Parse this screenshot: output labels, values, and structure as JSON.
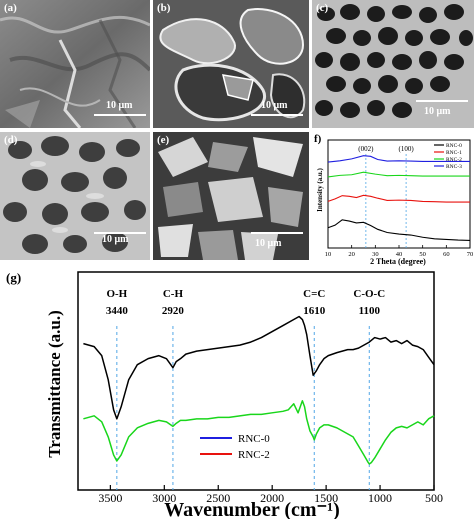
{
  "sem_panels": [
    {
      "label": "(a)",
      "scale": "10 μm"
    },
    {
      "label": "(b)",
      "scale": "10 μm"
    },
    {
      "label": "(c)",
      "scale": "10 μm"
    },
    {
      "label": "(d)",
      "scale": "10 μm"
    },
    {
      "label": "(e)",
      "scale": "10 μm"
    }
  ],
  "colors": {
    "RNC-0": "#000000",
    "RNC-1": "#e8120e",
    "RNC-2": "#19d61b",
    "RNC-3": "#1f1fe0",
    "dash": "#52a7e6"
  },
  "chart_data": [
    {
      "panel": "f",
      "type": "line",
      "label": "f)",
      "xlabel": "2 Theta (degree)",
      "ylabel": "Intensity (a.u.)",
      "xlim": [
        10,
        70
      ],
      "xticks": [
        "10",
        "20",
        "30",
        "40",
        "50",
        "60",
        "70"
      ],
      "peak_labels": [
        "(002)",
        "(100)"
      ],
      "peak_positions": [
        26,
        43
      ],
      "series": [
        {
          "name": "RNC-0",
          "x": [
            10,
            13,
            16,
            19,
            22,
            25,
            28,
            31,
            35,
            40,
            45,
            50,
            55,
            60,
            65,
            70
          ],
          "y": [
            0.45,
            0.53,
            0.7,
            0.66,
            0.6,
            0.62,
            0.52,
            0.4,
            0.3,
            0.25,
            0.22,
            0.15,
            0.1,
            0.08,
            0.06,
            0.05
          ]
        },
        {
          "name": "RNC-1",
          "x": [
            10,
            13,
            16,
            19,
            22,
            25,
            28,
            31,
            35,
            40,
            45,
            50,
            55,
            60,
            65,
            70
          ],
          "y": [
            1.28,
            1.36,
            1.46,
            1.44,
            1.4,
            1.47,
            1.44,
            1.38,
            1.31,
            1.32,
            1.31,
            1.28,
            1.27,
            1.26,
            1.26,
            1.26
          ]
        },
        {
          "name": "RNC-2",
          "x": [
            10,
            15,
            20,
            25,
            30,
            35,
            40,
            45,
            50,
            55,
            60,
            65,
            70
          ],
          "y": [
            2.05,
            2.1,
            2.12,
            2.2,
            2.14,
            2.09,
            2.1,
            2.09,
            2.08,
            2.08,
            2.08,
            2.08,
            2.08
          ]
        },
        {
          "name": "RNC-3",
          "x": [
            10,
            15,
            20,
            25,
            28,
            31,
            35,
            40,
            45,
            50,
            55,
            60,
            65,
            70
          ],
          "y": [
            2.52,
            2.56,
            2.62,
            2.72,
            2.7,
            2.6,
            2.55,
            2.56,
            2.55,
            2.54,
            2.54,
            2.54,
            2.54,
            2.54
          ]
        }
      ]
    },
    {
      "panel": "g",
      "type": "line",
      "label": "(g)",
      "xlabel": "Wavenumber (cm⁻¹)",
      "ylabel": "Transmittance (a.u.)",
      "xlim": [
        3800,
        500
      ],
      "xticks": [
        "3500",
        "3000",
        "2500",
        "2000",
        "1500",
        "1000",
        "500"
      ],
      "annotations": [
        {
          "name": "O-H",
          "value": "3440",
          "x": 3440
        },
        {
          "name": "C-H",
          "value": "2920",
          "x": 2920
        },
        {
          "name": "C=C",
          "value": "1610",
          "x": 1610
        },
        {
          "name": "C-O-C",
          "value": "1100",
          "x": 1100
        }
      ],
      "series": [
        {
          "name": "RNC-0",
          "x": [
            3750,
            3650,
            3580,
            3520,
            3470,
            3440,
            3400,
            3330,
            3250,
            3150,
            3050,
            2980,
            2940,
            2920,
            2890,
            2850,
            2800,
            2700,
            2600,
            2500,
            2400,
            2300,
            2200,
            2100,
            2000,
            1900,
            1800,
            1750,
            1720,
            1700,
            1680,
            1650,
            1620,
            1610,
            1590,
            1560,
            1520,
            1480,
            1440,
            1400,
            1350,
            1300,
            1250,
            1200,
            1150,
            1100,
            1050,
            1000,
            950,
            900,
            850,
            800,
            750,
            700,
            650,
            600,
            550,
            500
          ],
          "y": [
            0.84,
            0.82,
            0.76,
            0.6,
            0.4,
            0.34,
            0.42,
            0.6,
            0.7,
            0.74,
            0.76,
            0.74,
            0.7,
            0.68,
            0.72,
            0.74,
            0.77,
            0.79,
            0.8,
            0.81,
            0.82,
            0.83,
            0.85,
            0.88,
            0.92,
            0.96,
            1.0,
            1.02,
            1.0,
            0.96,
            0.9,
            0.76,
            0.63,
            0.64,
            0.66,
            0.7,
            0.74,
            0.76,
            0.77,
            0.78,
            0.79,
            0.8,
            0.8,
            0.81,
            0.83,
            0.85,
            0.88,
            0.87,
            0.88,
            0.85,
            0.86,
            0.84,
            0.86,
            0.83,
            0.82,
            0.8,
            0.75,
            0.7
          ]
        },
        {
          "name": "RNC-2",
          "x": [
            3750,
            3650,
            3580,
            3520,
            3470,
            3440,
            3400,
            3330,
            3250,
            3150,
            3050,
            2980,
            2940,
            2920,
            2890,
            2850,
            2800,
            2700,
            2600,
            2500,
            2400,
            2300,
            2200,
            2100,
            2000,
            1900,
            1850,
            1800,
            1760,
            1720,
            1700,
            1680,
            1650,
            1620,
            1610,
            1590,
            1560,
            1520,
            1480,
            1440,
            1400,
            1350,
            1300,
            1250,
            1200,
            1150,
            1110,
            1100,
            1080,
            1050,
            1000,
            950,
            900,
            850,
            800,
            750,
            700,
            650,
            600,
            550,
            500
          ],
          "y": [
            0.34,
            0.36,
            0.32,
            0.22,
            0.1,
            0.06,
            0.1,
            0.22,
            0.28,
            0.31,
            0.33,
            0.32,
            0.3,
            0.29,
            0.31,
            0.33,
            0.33,
            0.34,
            0.34,
            0.35,
            0.35,
            0.36,
            0.37,
            0.37,
            0.38,
            0.39,
            0.4,
            0.44,
            0.38,
            0.46,
            0.42,
            0.34,
            0.26,
            0.22,
            0.2,
            0.24,
            0.28,
            0.3,
            0.3,
            0.29,
            0.28,
            0.26,
            0.24,
            0.22,
            0.16,
            0.1,
            0.05,
            0.04,
            0.05,
            0.08,
            0.14,
            0.2,
            0.25,
            0.28,
            0.29,
            0.28,
            0.3,
            0.32,
            0.3,
            0.34,
            0.36
          ]
        }
      ]
    }
  ]
}
